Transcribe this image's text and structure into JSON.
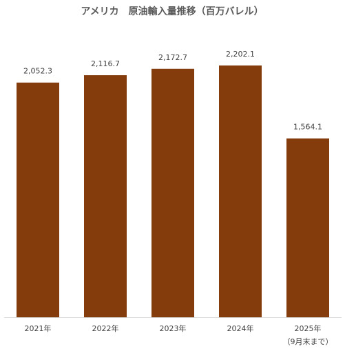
{
  "chart_data": {
    "type": "bar",
    "title": "アメリカ　原油輸入量推移（百万バレル）",
    "categories": [
      "2021年",
      "2022年",
      "2023年",
      "2024年",
      "2025年"
    ],
    "note": "（9月末まで）",
    "values": [
      2052.3,
      2116.7,
      2172.7,
      2202.1,
      1564.1
    ],
    "value_labels": [
      "2,052.3",
      "2,116.7",
      "2,172.7",
      "2,202.1",
      "1,564.1"
    ],
    "color": "#843c0c",
    "ylim": [
      0,
      2500
    ]
  }
}
